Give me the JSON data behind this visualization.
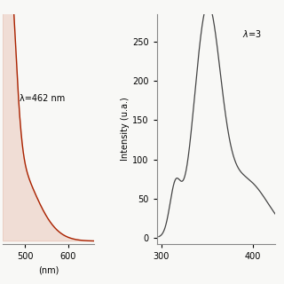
{
  "left_plot": {
    "xlabel": "(nm)",
    "peak_label": "λ=462 nm",
    "xlim": [
      448,
      660
    ],
    "xticks": [
      500,
      600
    ],
    "ylim": [
      -0.01,
      0.72
    ],
    "line_color": "#aa2200",
    "fill_color": "#cc6644",
    "fill_alpha": 0.18
  },
  "right_plot": {
    "ylabel": "Intensity (u.a.)",
    "peak_label": "λ=3",
    "xlim": [
      295,
      425
    ],
    "xticks": [
      300,
      400
    ],
    "ylim": [
      -8,
      285
    ],
    "yticks": [
      0,
      50,
      100,
      150,
      200,
      250
    ],
    "line_color": "#444444"
  },
  "background_color": "#f8f8f6"
}
